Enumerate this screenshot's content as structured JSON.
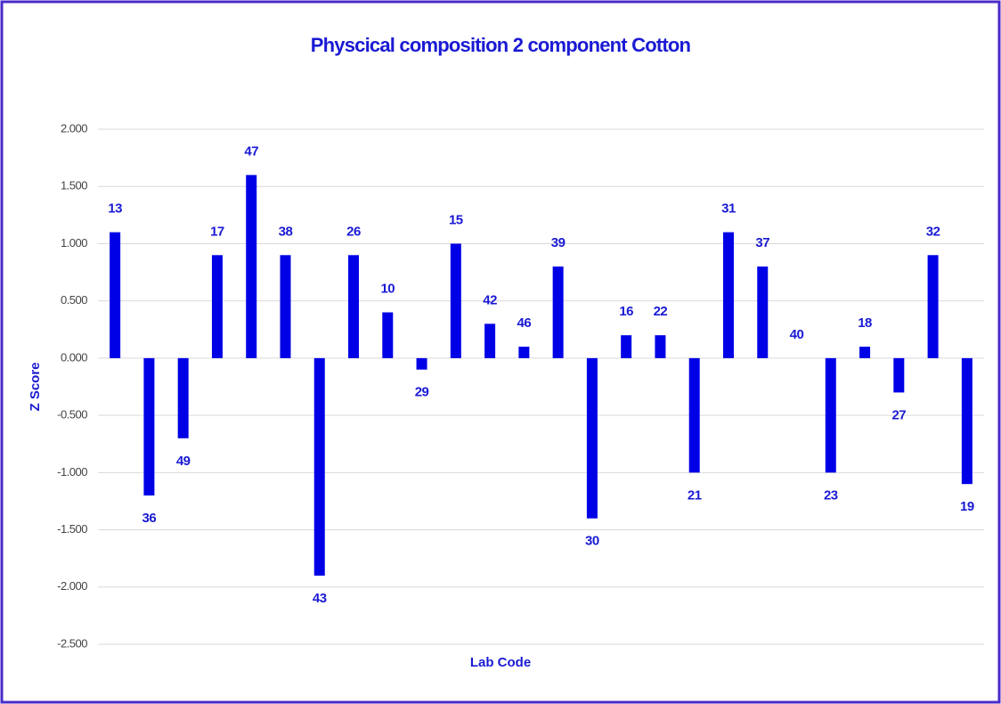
{
  "chart_data": {
    "type": "bar",
    "title": "Physcical composition 2 component Cotton",
    "x_label": "Lab Code",
    "y_label": "Z Score",
    "categories": [
      "13",
      "36",
      "49",
      "17",
      "47",
      "38",
      "43",
      "26",
      "10",
      "29",
      "15",
      "42",
      "46",
      "39",
      "30",
      "16",
      "22",
      "21",
      "31",
      "37",
      "40",
      "23",
      "18",
      "27",
      "32",
      "19"
    ],
    "values": [
      1.1,
      -1.2,
      -0.7,
      0.9,
      1.6,
      0.9,
      -1.9,
      0.9,
      0.4,
      -0.1,
      1.0,
      0.3,
      0.1,
      0.8,
      -1.4,
      0.2,
      0.2,
      -1.0,
      1.1,
      0.8,
      0,
      -1.0,
      0.1,
      -0.3,
      0.9,
      -1.1
    ],
    "color": "#0000e6",
    "ylim": [
      -2.5,
      2
    ],
    "yticks": [
      {
        "value": -2.5,
        "label": "-2.500"
      },
      {
        "value": -2,
        "label": "-2.000"
      },
      {
        "value": -1.5,
        "label": "-1.500"
      },
      {
        "value": -1,
        "label": "-1.000"
      },
      {
        "value": -0.5,
        "label": "-0.500"
      },
      {
        "value": 0,
        "label": "0.000"
      },
      {
        "value": 0.5,
        "label": "0.500"
      },
      {
        "value": 1,
        "label": "1.000"
      },
      {
        "value": 1.5,
        "label": "1.500"
      },
      {
        "value": 2,
        "label": "2.000"
      }
    ],
    "grid": true
  }
}
